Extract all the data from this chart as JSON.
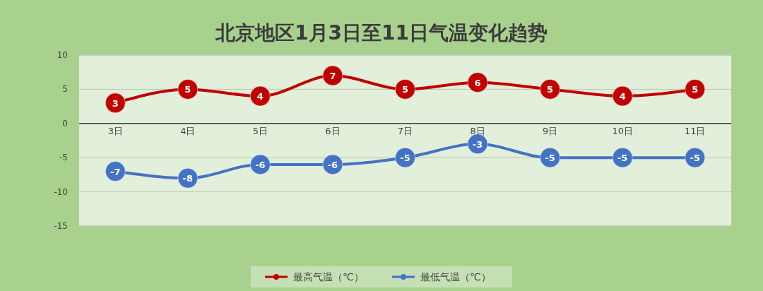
{
  "chart_data": {
    "type": "line",
    "title": "北京地区1月3日至11日气温变化趋势",
    "categories": [
      "3日",
      "4日",
      "5日",
      "6日",
      "7日",
      "8日",
      "9日",
      "10日",
      "11日"
    ],
    "series": [
      {
        "name": "最高气温（℃）",
        "color": "#c00000",
        "values": [
          3,
          5,
          4,
          7,
          5,
          6,
          5,
          4,
          5
        ]
      },
      {
        "name": "最低气温（℃）",
        "color": "#4472c4",
        "values": [
          -7,
          -8,
          -6,
          -6,
          -5,
          -3,
          -5,
          -5,
          -5
        ]
      }
    ],
    "ylim": [
      -15,
      10
    ],
    "yticks": [
      -15,
      -10,
      -5,
      0,
      5,
      10
    ],
    "grid": "y",
    "legend": "bottom",
    "marker": "circle",
    "line_style": "solid",
    "data_labels": true
  }
}
